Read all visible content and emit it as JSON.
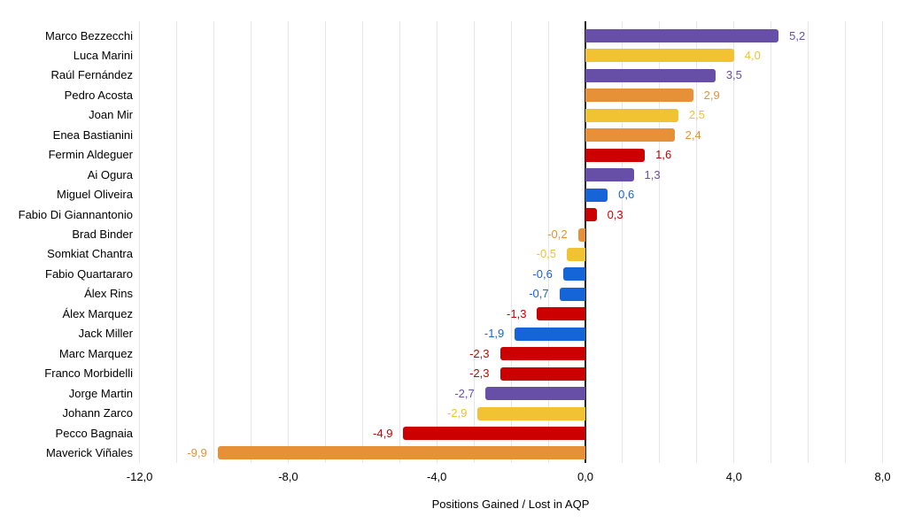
{
  "chart_data": {
    "type": "bar",
    "orientation": "horizontal",
    "title": "",
    "xlabel": "Positions Gained / Lost in AQP",
    "ylabel": "",
    "xlim": [
      -12,
      8
    ],
    "grid_step": 1,
    "grid_on": true,
    "legend_position": "none",
    "background_color": "#ffffff",
    "gridline_color": "#e6e6e6",
    "axis_line_color": "#212121",
    "text_color": "#000000",
    "palette": {
      "purple": "#674EA7",
      "yellow": "#F1C232",
      "orange": "#E69138",
      "red": "#CC0000",
      "blue": "#1565D8"
    },
    "categories": [
      "Marco Bezzecchi",
      "Luca Marini",
      "Raúl Fernández",
      "Pedro Acosta",
      "Joan Mir",
      "Enea Bastianini",
      "Fermin Aldeguer",
      "Ai Ogura",
      "Miguel Oliveira",
      "Fabio Di Giannantonio",
      "Brad Binder",
      "Somkiat Chantra",
      "Fabio Quartararo",
      "Álex Rins",
      "Álex Marquez",
      "Jack Miller",
      "Marc Marquez",
      "Franco Morbidelli",
      "Jorge Martin",
      "Johann Zarco",
      "Pecco Bagnaia",
      "Maverick Viñales"
    ],
    "values": [
      5.2,
      4.0,
      3.5,
      2.9,
      2.5,
      2.4,
      1.6,
      1.3,
      0.6,
      0.3,
      -0.2,
      -0.5,
      -0.6,
      -0.7,
      -1.3,
      -1.9,
      -2.3,
      -2.3,
      -2.7,
      -2.9,
      -4.9,
      -9.9
    ],
    "value_labels": [
      "5,2",
      "4,0",
      "3,5",
      "2,9",
      "2,5",
      "2,4",
      "1,6",
      "1,3",
      "0,6",
      "0,3",
      "-0,2",
      "-0,5",
      "-0,6",
      "-0,7",
      "-1,3",
      "-1,9",
      "-2,3",
      "-2,3",
      "-2,7",
      "-2,9",
      "-4,9",
      "-9,9"
    ],
    "bar_colors": [
      "purple",
      "yellow",
      "purple",
      "orange",
      "yellow",
      "orange",
      "red",
      "purple",
      "blue",
      "red",
      "orange",
      "yellow",
      "blue",
      "blue",
      "red",
      "blue",
      "red",
      "red",
      "purple",
      "yellow",
      "red",
      "orange"
    ],
    "x_ticks": [
      {
        "value": -12,
        "label": "-12,0"
      },
      {
        "value": -8,
        "label": "-8,0"
      },
      {
        "value": -4,
        "label": "-4,0"
      },
      {
        "value": 0,
        "label": "0,0"
      },
      {
        "value": 4,
        "label": "4,0"
      },
      {
        "value": 8,
        "label": "8,0"
      }
    ]
  }
}
